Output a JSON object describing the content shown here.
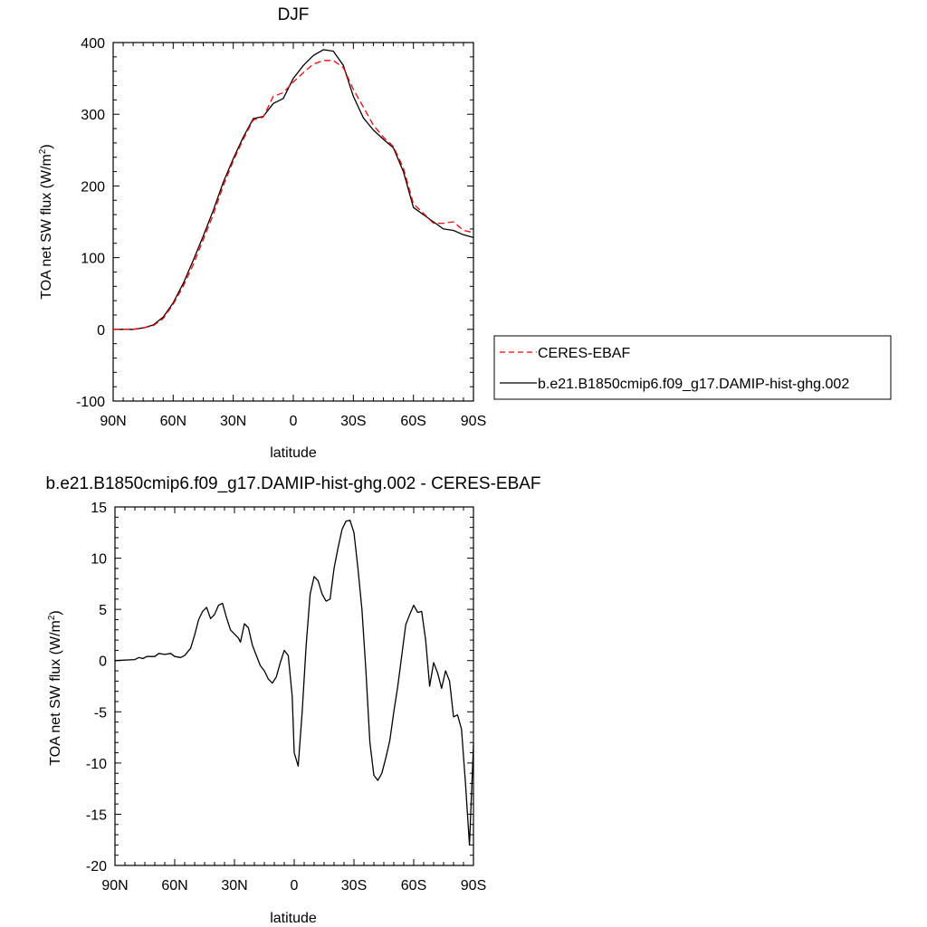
{
  "chart_data": [
    {
      "type": "line",
      "title": "DJF",
      "xlabel": "latitude",
      "ylabel": "TOA net SW flux (W/m",
      "ylabel_sup": "2",
      "ylabel_tail": ")",
      "xlim": [
        90,
        -90
      ],
      "ylim": [
        -100,
        400
      ],
      "xticks": [
        90,
        60,
        30,
        0,
        -30,
        -60,
        -90
      ],
      "xticklabels": [
        "90N",
        "60N",
        "30N",
        "0",
        "30S",
        "60S",
        "90S"
      ],
      "yticks": [
        -100,
        0,
        100,
        200,
        300,
        400
      ],
      "yticklabels": [
        "-100",
        "0",
        "100",
        "200",
        "300",
        "400"
      ],
      "grid": false,
      "legend": {
        "placement": "right",
        "entries": [
          "CERES-EBAF",
          "b.e21.B1850cmip6.f09_g17.DAMIP-hist-ghg.002"
        ]
      },
      "x": [
        90,
        85,
        80,
        75,
        70,
        65,
        60,
        55,
        50,
        45,
        40,
        35,
        30,
        25,
        20,
        15,
        10,
        5,
        0,
        -5,
        -10,
        -15,
        -20,
        -25,
        -30,
        -35,
        -40,
        -45,
        -50,
        -55,
        -60,
        -65,
        -70,
        -75,
        -80,
        -85,
        -90
      ],
      "series": [
        {
          "name": "CERES-EBAF",
          "color": "#ff0000",
          "dash": true,
          "values": [
            0,
            0,
            0,
            2,
            5,
            15,
            35,
            60,
            90,
            125,
            160,
            200,
            235,
            265,
            292,
            296,
            325,
            330,
            345,
            358,
            370,
            375,
            375,
            365,
            335,
            310,
            285,
            268,
            255,
            225,
            175,
            162,
            148,
            148,
            150,
            138,
            135
          ]
        },
        {
          "name": "b.e21.B1850cmip6.f09_g17.DAMIP-hist-ghg.002",
          "color": "#000000",
          "dash": false,
          "values": [
            0,
            0,
            0,
            2,
            6,
            17,
            37,
            64,
            96,
            130,
            166,
            205,
            238,
            268,
            294,
            297,
            315,
            322,
            350,
            368,
            382,
            390,
            388,
            368,
            325,
            295,
            278,
            265,
            253,
            220,
            170,
            160,
            150,
            140,
            138,
            132,
            128
          ]
        }
      ]
    },
    {
      "type": "line",
      "title": "b.e21.B1850cmip6.f09_g17.DAMIP-hist-ghg.002 - CERES-EBAF",
      "xlabel": "latitude",
      "ylabel": "TOA net SW flux (W/m",
      "ylabel_sup": "2",
      "ylabel_tail": ")",
      "xlim": [
        90,
        -90
      ],
      "ylim": [
        -20,
        15
      ],
      "xticks": [
        90,
        60,
        30,
        0,
        -30,
        -60,
        -90
      ],
      "xticklabels": [
        "90N",
        "60N",
        "30N",
        "0",
        "30S",
        "60S",
        "90S"
      ],
      "yticks": [
        -20,
        -15,
        -10,
        -5,
        0,
        5,
        10,
        15
      ],
      "yticklabels": [
        "-20",
        "-15",
        "-10",
        "-5",
        "0",
        "5",
        "10",
        "15"
      ],
      "grid": false,
      "series": [
        {
          "color": "#000000",
          "dash": false,
          "x": [
            90,
            80,
            78,
            76,
            74,
            70,
            68,
            65,
            62,
            60,
            57,
            55,
            52,
            50,
            48,
            46,
            44,
            42,
            40,
            38,
            36,
            34,
            32,
            30,
            28,
            27,
            25,
            23,
            21,
            19,
            17,
            15,
            13,
            11,
            9,
            7,
            5,
            3,
            1,
            0,
            -2,
            -4,
            -6,
            -8,
            -10,
            -12,
            -14,
            -16,
            -18,
            -20,
            -22,
            -24,
            -26,
            -28,
            -30,
            -32,
            -34,
            -36,
            -38,
            -40,
            -42,
            -44,
            -46,
            -48,
            -50,
            -52,
            -54,
            -56,
            -58,
            -60,
            -62,
            -64,
            -66,
            -68,
            -70,
            -72,
            -74,
            -76,
            -78,
            -80,
            -82,
            -84,
            -86,
            -88,
            -90
          ],
          "values": [
            0,
            0.1,
            0.3,
            0.2,
            0.4,
            0.4,
            0.7,
            0.6,
            0.7,
            0.4,
            0.3,
            0.5,
            1.2,
            2.5,
            4.0,
            4.8,
            5.2,
            4.1,
            4.5,
            5.4,
            5.6,
            4.2,
            3.0,
            2.6,
            2.2,
            1.8,
            3.6,
            3.2,
            1.5,
            0.5,
            -0.5,
            -1.0,
            -1.8,
            -2.2,
            -1.6,
            -0.2,
            1.0,
            0.5,
            -3.5,
            -9.0,
            -10.3,
            -5.0,
            1.5,
            6.5,
            8.2,
            7.8,
            6.5,
            5.8,
            6.0,
            9.0,
            11.0,
            12.8,
            13.6,
            13.7,
            12.5,
            9.0,
            5.0,
            -1.0,
            -8.0,
            -11.2,
            -11.7,
            -11.0,
            -9.5,
            -7.8,
            -5.0,
            -2.5,
            0.5,
            3.5,
            4.5,
            5.4,
            4.7,
            4.8,
            2.0,
            -2.5,
            -0.2,
            -1.2,
            -2.7,
            -1.0,
            -2.0,
            -5.5,
            -5.3,
            -6.7,
            -12.0,
            -18.0,
            -8.2
          ]
        }
      ]
    }
  ]
}
